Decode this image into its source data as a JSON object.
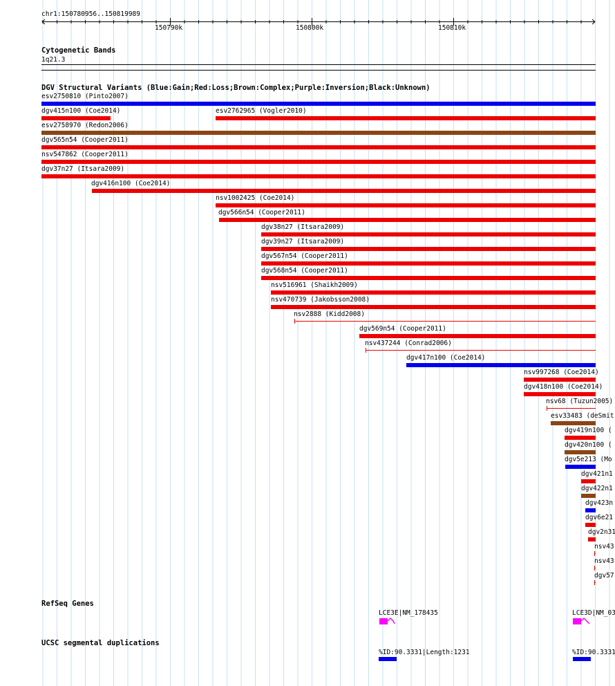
{
  "ruler": {
    "location": "chr1:150780956..150819989",
    "ticks": [
      "150790k",
      "150800k",
      "150810k"
    ]
  },
  "tracks": {
    "cytoband": {
      "title": "Cytogenetic Bands",
      "band": "1q21.3"
    },
    "dgv": {
      "title": "DGV Structural Variants (Blue:Gain;Red:Loss;Brown:Complex;Purple:Inversion;Black:Unknown)",
      "features": [
        {
          "label": "esv2750810 (Pinto2007)",
          "type": "gain"
        },
        {
          "label": "dgv415n100 (Coe2014)",
          "type": "loss"
        },
        {
          "label": "esv2762965 (Vogler2010)",
          "type": "loss"
        },
        {
          "label": "esv2758970 (Redon2006)",
          "type": "complex"
        },
        {
          "label": "dgv565n54 (Cooper2011)",
          "type": "loss"
        },
        {
          "label": "nsv547862 (Cooper2011)",
          "type": "loss"
        },
        {
          "label": "dgv37n27 (Itsara2009)",
          "type": "loss"
        },
        {
          "label": "dgv416n100 (Coe2014)",
          "type": "loss"
        },
        {
          "label": "nsv1002425 (Coe2014)",
          "type": "loss"
        },
        {
          "label": "dgv566n54 (Cooper2011)",
          "type": "loss"
        },
        {
          "label": "dgv38n27 (Itsara2009)",
          "type": "loss"
        },
        {
          "label": "dgv39n27 (Itsara2009)",
          "type": "loss"
        },
        {
          "label": "dgv567n54 (Cooper2011)",
          "type": "loss"
        },
        {
          "label": "dgv568n54 (Cooper2011)",
          "type": "loss"
        },
        {
          "label": "nsv516961 (Shaikh2009)",
          "type": "loss"
        },
        {
          "label": "nsv470739 (Jakobsson2008)",
          "type": "loss"
        },
        {
          "label": "nsv2888 (Kidd2008)",
          "type": "loss"
        },
        {
          "label": "dgv569n54 (Cooper2011)",
          "type": "loss"
        },
        {
          "label": "nsv437244 (Conrad2006)",
          "type": "loss"
        },
        {
          "label": "dgv417n100 (Coe2014)",
          "type": "gain"
        },
        {
          "label": "nsv997268 (Coe2014)",
          "type": "loss"
        },
        {
          "label": "dgv418n100 (Coe2014)",
          "type": "loss"
        },
        {
          "label": "nsv68 (Tuzun2005)",
          "type": "loss"
        },
        {
          "label": "esv33483 (deSmit",
          "type": "complex"
        },
        {
          "label": "dgv419n100 (",
          "type": "loss"
        },
        {
          "label": "dgv420n100 (",
          "type": "complex"
        },
        {
          "label": "dgv5e213 (Mo",
          "type": "gain"
        },
        {
          "label": "dgv421n1",
          "type": "loss"
        },
        {
          "label": "dgv422n1",
          "type": "complex"
        },
        {
          "label": "dgv423n",
          "type": "gain"
        },
        {
          "label": "dgv6e21",
          "type": "loss"
        },
        {
          "label": "dgv2n31",
          "type": "loss"
        },
        {
          "label": "nsv43",
          "type": "loss"
        },
        {
          "label": "nsv43",
          "type": "loss"
        },
        {
          "label": "dgv57",
          "type": "loss"
        }
      ]
    },
    "refseq": {
      "title": "RefSeq Genes",
      "genes": [
        {
          "label": "LCE3E|NM_178435"
        },
        {
          "label": "LCE3D|NM_03"
        }
      ]
    },
    "segdups": {
      "title": "UCSC segmental duplications",
      "items": [
        {
          "label": "%ID:90.3331|Length:1231"
        },
        {
          "label": "%ID:90.3331"
        }
      ]
    }
  },
  "colors": {
    "gain": "#0000ee",
    "loss": "#ee0000",
    "complex": "#8b4513",
    "gene": "#ff00ff",
    "segdup": "#0000ee",
    "grid": "#c6e2f2"
  }
}
